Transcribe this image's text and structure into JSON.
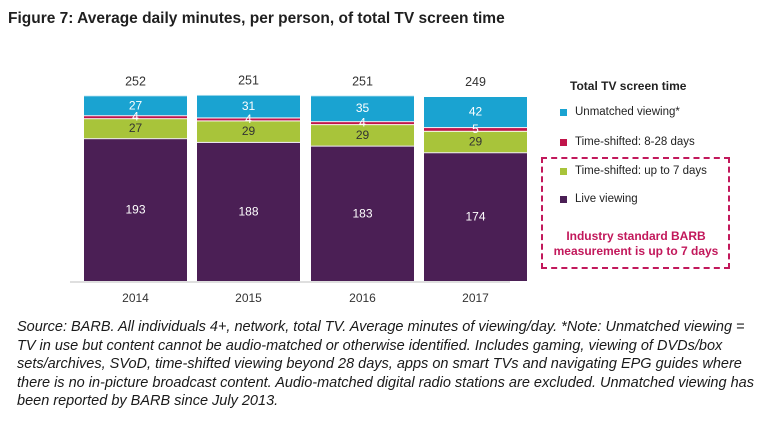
{
  "figure": {
    "title": "Figure 7: Average daily minutes, per person, of total TV screen time",
    "source_note": "Source: BARB. All individuals 4+, network, total TV. Average minutes of viewing/day. *Note: Unmatched viewing = TV in use but content cannot be audio-matched or otherwise identified. Includes gaming, viewing of DVDs/box sets/archives, SVoD, time-shifted viewing beyond 28 days, apps on smart TVs and navigating EPG guides where there is no in-picture broadcast content. Audio-matched digital radio stations are excluded. Unmatched viewing has been reported by BARB since July 2013."
  },
  "legend": {
    "title": "Total TV screen time",
    "items": [
      {
        "label": "Unmatched viewing*",
        "color": "#1aa3d1"
      },
      {
        "label": "Time-shifted:  8-28 days",
        "color": "#c0144a"
      },
      {
        "label": "Time-shifted: up to 7 days",
        "color": "#a8c43a"
      },
      {
        "label": "Live viewing",
        "color": "#4b1f55"
      }
    ],
    "note": "Industry standard BARB measurement is up to 7 days"
  },
  "chart_data": {
    "type": "bar",
    "stacked": true,
    "title": "Figure 7: Average daily minutes, per person, of total TV screen time",
    "categories": [
      "2014",
      "2015",
      "2016",
      "2017"
    ],
    "series": [
      {
        "name": "Live viewing",
        "color": "#4b1f55",
        "values": [
          193,
          188,
          183,
          174
        ]
      },
      {
        "name": "Time-shifted: up to 7 days",
        "color": "#a8c43a",
        "values": [
          27,
          29,
          29,
          29
        ]
      },
      {
        "name": "Time-shifted:  8-28 days",
        "color": "#c0144a",
        "values": [
          4,
          4,
          4,
          5
        ]
      },
      {
        "name": "Unmatched viewing*",
        "color": "#1aa3d1",
        "values": [
          27,
          31,
          35,
          42
        ]
      }
    ],
    "totals": [
      252,
      251,
      251,
      249
    ],
    "xlabel": "",
    "ylabel": "",
    "ylim": [
      0,
      260
    ],
    "grid": false
  }
}
